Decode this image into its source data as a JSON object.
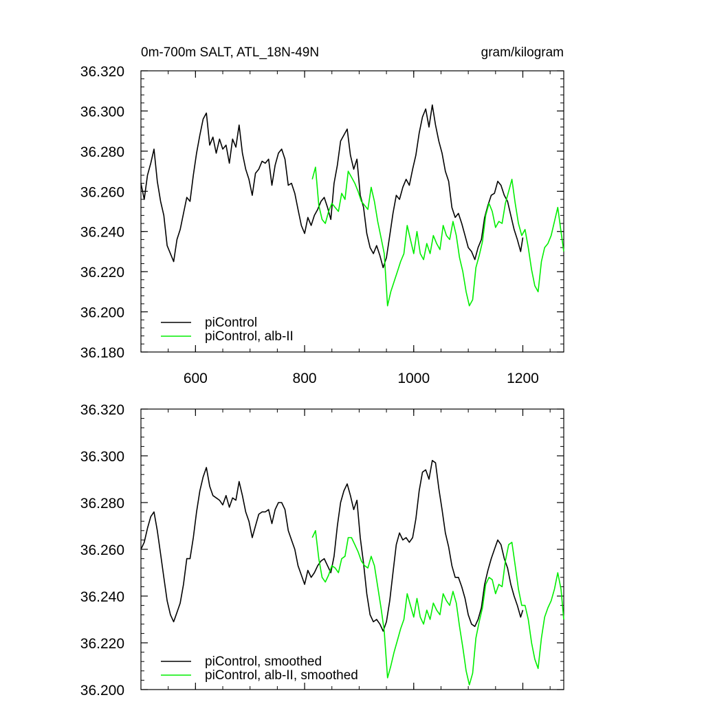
{
  "chart_data": [
    {
      "type": "line",
      "title_left": "0m-700m SALT, ATL_18N-49N",
      "title_right": "gram/kilogram",
      "xlim": [
        500,
        1275
      ],
      "ylim": [
        36.18,
        36.32
      ],
      "xticks": [
        600,
        800,
        1000,
        1200
      ],
      "xtick_labels": [
        "600",
        "800",
        "1000",
        "1200"
      ],
      "yticks": [
        36.18,
        36.2,
        36.22,
        36.24,
        36.26,
        36.28,
        36.3,
        36.32
      ],
      "ytick_labels": [
        "36.180",
        "36.200",
        "36.220",
        "36.240",
        "36.260",
        "36.280",
        "36.300",
        "36.320"
      ],
      "legend_position": "bottom-left",
      "series": [
        {
          "name": "piControl",
          "color": "#000000",
          "x": [
            500,
            506,
            512,
            518,
            524,
            530,
            536,
            542,
            548,
            554,
            560,
            566,
            572,
            578,
            584,
            590,
            596,
            602,
            608,
            614,
            620,
            626,
            632,
            638,
            644,
            650,
            656,
            662,
            668,
            674,
            680,
            686,
            692,
            698,
            704,
            710,
            716,
            722,
            728,
            734,
            740,
            746,
            752,
            758,
            764,
            770,
            776,
            782,
            788,
            794,
            800,
            806,
            812,
            818,
            824,
            830,
            836,
            842,
            848,
            854,
            860,
            866,
            872,
            878,
            884,
            890,
            896,
            902,
            908,
            914,
            920,
            926,
            932,
            938,
            944,
            950,
            956,
            962,
            968,
            974,
            980,
            986,
            992,
            998,
            1004,
            1010,
            1016,
            1022,
            1028,
            1034,
            1040,
            1046,
            1052,
            1058,
            1064,
            1070,
            1076,
            1082,
            1088,
            1094,
            1100,
            1106,
            1112,
            1118,
            1124,
            1130,
            1136,
            1142,
            1148,
            1154,
            1160,
            1166,
            1172,
            1178,
            1184,
            1190,
            1196,
            1200
          ],
          "y": [
            36.264,
            36.256,
            36.268,
            36.274,
            36.281,
            36.265,
            36.255,
            36.248,
            36.233,
            36.229,
            36.225,
            36.236,
            36.241,
            36.249,
            36.257,
            36.255,
            36.268,
            36.279,
            36.288,
            36.296,
            36.299,
            36.283,
            36.287,
            36.279,
            36.286,
            36.281,
            36.283,
            36.274,
            36.286,
            36.282,
            36.293,
            36.279,
            36.271,
            36.266,
            36.258,
            36.269,
            36.271,
            36.275,
            36.274,
            36.276,
            36.263,
            36.273,
            36.279,
            36.281,
            36.276,
            36.263,
            36.264,
            36.259,
            36.251,
            36.243,
            36.239,
            36.247,
            36.243,
            36.248,
            36.251,
            36.255,
            36.257,
            36.252,
            36.246,
            36.264,
            36.273,
            36.285,
            36.288,
            36.291,
            36.278,
            36.271,
            36.276,
            36.258,
            36.252,
            36.239,
            36.232,
            36.229,
            36.233,
            36.228,
            36.222,
            36.227,
            36.238,
            36.249,
            36.258,
            36.256,
            36.262,
            36.266,
            36.263,
            36.271,
            36.278,
            36.289,
            36.297,
            36.301,
            36.292,
            36.303,
            36.293,
            36.285,
            36.279,
            36.27,
            36.265,
            36.252,
            36.247,
            36.249,
            36.244,
            36.238,
            36.232,
            36.23,
            36.226,
            36.232,
            36.236,
            36.247,
            36.253,
            36.258,
            36.259,
            36.265,
            36.263,
            36.258,
            36.255,
            36.248,
            36.241,
            36.236,
            36.23,
            36.237
          ]
        },
        {
          "name": "piControl, alb-II",
          "color": "#00ee00",
          "x": [
            814,
            820,
            826,
            832,
            838,
            844,
            850,
            856,
            862,
            868,
            874,
            880,
            886,
            892,
            898,
            904,
            910,
            916,
            922,
            928,
            934,
            940,
            946,
            952,
            958,
            964,
            970,
            976,
            982,
            988,
            994,
            1000,
            1006,
            1012,
            1018,
            1024,
            1030,
            1036,
            1042,
            1048,
            1054,
            1060,
            1066,
            1072,
            1078,
            1084,
            1090,
            1096,
            1102,
            1108,
            1114,
            1120,
            1126,
            1132,
            1138,
            1144,
            1150,
            1156,
            1162,
            1168,
            1174,
            1180,
            1186,
            1192,
            1198,
            1204,
            1210,
            1216,
            1222,
            1228,
            1234,
            1240,
            1246,
            1252,
            1258,
            1264,
            1270,
            1275
          ],
          "y": [
            36.266,
            36.272,
            36.253,
            36.246,
            36.244,
            36.25,
            36.254,
            36.252,
            36.25,
            36.259,
            36.256,
            36.27,
            36.267,
            36.264,
            36.26,
            36.255,
            36.253,
            36.251,
            36.262,
            36.255,
            36.245,
            36.237,
            36.229,
            36.203,
            36.21,
            36.215,
            36.22,
            36.225,
            36.229,
            36.243,
            36.236,
            36.229,
            36.24,
            36.229,
            36.226,
            36.234,
            36.229,
            36.238,
            36.234,
            36.231,
            36.243,
            36.238,
            36.236,
            36.245,
            36.238,
            36.227,
            36.22,
            36.21,
            36.203,
            36.206,
            36.222,
            36.228,
            36.235,
            36.248,
            36.254,
            36.25,
            36.242,
            36.245,
            36.244,
            36.254,
            36.26,
            36.266,
            36.254,
            36.244,
            36.238,
            36.241,
            36.232,
            36.221,
            36.213,
            36.21,
            36.225,
            36.232,
            36.234,
            36.238,
            36.245,
            36.252,
            36.24,
            36.23
          ]
        }
      ]
    },
    {
      "type": "line",
      "xlim": [
        500,
        1275
      ],
      "ylim": [
        36.2,
        36.32
      ],
      "xticks": [
        600,
        800,
        1000,
        1200
      ],
      "yticks": [
        36.2,
        36.22,
        36.24,
        36.26,
        36.28,
        36.3,
        36.32
      ],
      "ytick_labels": [
        "36.200",
        "36.220",
        "36.240",
        "36.260",
        "36.280",
        "36.300",
        "36.320"
      ],
      "legend_position": "bottom-left",
      "series": [
        {
          "name": "piControl, smoothed",
          "color": "#000000",
          "x": [
            500,
            506,
            512,
            518,
            524,
            530,
            536,
            542,
            548,
            554,
            560,
            566,
            572,
            578,
            584,
            590,
            596,
            602,
            608,
            614,
            620,
            626,
            632,
            638,
            644,
            650,
            656,
            662,
            668,
            674,
            680,
            686,
            692,
            698,
            704,
            710,
            716,
            722,
            728,
            734,
            740,
            746,
            752,
            758,
            764,
            770,
            776,
            782,
            788,
            794,
            800,
            806,
            812,
            818,
            824,
            830,
            836,
            842,
            848,
            854,
            860,
            866,
            872,
            878,
            884,
            890,
            896,
            902,
            908,
            914,
            920,
            926,
            932,
            938,
            944,
            950,
            956,
            962,
            968,
            974,
            980,
            986,
            992,
            998,
            1004,
            1010,
            1016,
            1022,
            1028,
            1034,
            1040,
            1046,
            1052,
            1058,
            1064,
            1070,
            1076,
            1082,
            1088,
            1094,
            1100,
            1106,
            1112,
            1118,
            1124,
            1130,
            1136,
            1142,
            1148,
            1154,
            1160,
            1166,
            1172,
            1178,
            1184,
            1190,
            1196,
            1200
          ],
          "y": [
            36.26,
            36.263,
            36.269,
            36.274,
            36.276,
            36.268,
            36.258,
            36.248,
            36.238,
            36.232,
            36.229,
            36.233,
            36.237,
            36.245,
            36.256,
            36.256,
            36.265,
            36.276,
            36.285,
            36.291,
            36.295,
            36.287,
            36.283,
            36.282,
            36.281,
            36.279,
            36.283,
            36.278,
            36.282,
            36.281,
            36.289,
            36.283,
            36.276,
            36.272,
            36.265,
            36.27,
            36.275,
            36.276,
            36.276,
            36.277,
            36.271,
            36.277,
            36.28,
            36.28,
            36.277,
            36.268,
            36.264,
            36.26,
            36.253,
            36.249,
            36.245,
            36.251,
            36.248,
            36.25,
            36.253,
            36.255,
            36.256,
            36.253,
            36.25,
            36.257,
            36.27,
            36.28,
            36.285,
            36.288,
            36.283,
            36.277,
            36.281,
            36.265,
            36.254,
            36.241,
            36.232,
            36.229,
            36.23,
            36.228,
            36.225,
            36.229,
            36.238,
            36.25,
            36.262,
            36.267,
            36.264,
            36.265,
            36.263,
            36.265,
            36.273,
            36.285,
            36.293,
            36.294,
            36.29,
            36.298,
            36.297,
            36.286,
            36.277,
            36.267,
            36.261,
            36.253,
            36.248,
            36.248,
            36.244,
            36.239,
            36.232,
            36.228,
            36.227,
            36.23,
            36.235,
            36.245,
            36.251,
            36.256,
            36.26,
            36.264,
            36.262,
            36.256,
            36.252,
            36.245,
            36.24,
            36.236,
            36.231,
            36.234
          ]
        },
        {
          "name": "piControl, alb-II, smoothed",
          "color": "#00ee00",
          "x": [
            814,
            820,
            826,
            832,
            838,
            844,
            850,
            856,
            862,
            868,
            874,
            880,
            886,
            892,
            898,
            904,
            910,
            916,
            922,
            928,
            934,
            940,
            946,
            952,
            958,
            964,
            970,
            976,
            982,
            988,
            994,
            1000,
            1006,
            1012,
            1018,
            1024,
            1030,
            1036,
            1042,
            1048,
            1054,
            1060,
            1066,
            1072,
            1078,
            1084,
            1090,
            1096,
            1102,
            1108,
            1114,
            1120,
            1126,
            1132,
            1138,
            1144,
            1150,
            1156,
            1162,
            1168,
            1174,
            1180,
            1186,
            1192,
            1198,
            1204,
            1210,
            1216,
            1222,
            1228,
            1234,
            1240,
            1246,
            1252,
            1258,
            1264,
            1270,
            1275
          ],
          "y": [
            36.265,
            36.268,
            36.256,
            36.248,
            36.246,
            36.249,
            36.253,
            36.252,
            36.25,
            36.256,
            36.257,
            36.265,
            36.265,
            36.262,
            36.259,
            36.255,
            36.253,
            36.252,
            36.257,
            36.253,
            36.244,
            36.235,
            36.225,
            36.205,
            36.21,
            36.216,
            36.221,
            36.226,
            36.23,
            36.241,
            36.236,
            36.231,
            36.239,
            36.231,
            36.228,
            36.234,
            36.23,
            36.237,
            36.234,
            36.232,
            36.241,
            36.238,
            36.236,
            36.242,
            36.237,
            36.227,
            36.218,
            36.208,
            36.202,
            36.207,
            36.222,
            36.229,
            36.235,
            36.245,
            36.248,
            36.247,
            36.241,
            36.245,
            36.244,
            36.255,
            36.262,
            36.263,
            36.253,
            36.243,
            36.236,
            36.236,
            36.23,
            36.22,
            36.213,
            36.209,
            36.222,
            36.231,
            36.235,
            36.238,
            36.243,
            36.25,
            36.243,
            36.23
          ]
        }
      ]
    }
  ]
}
